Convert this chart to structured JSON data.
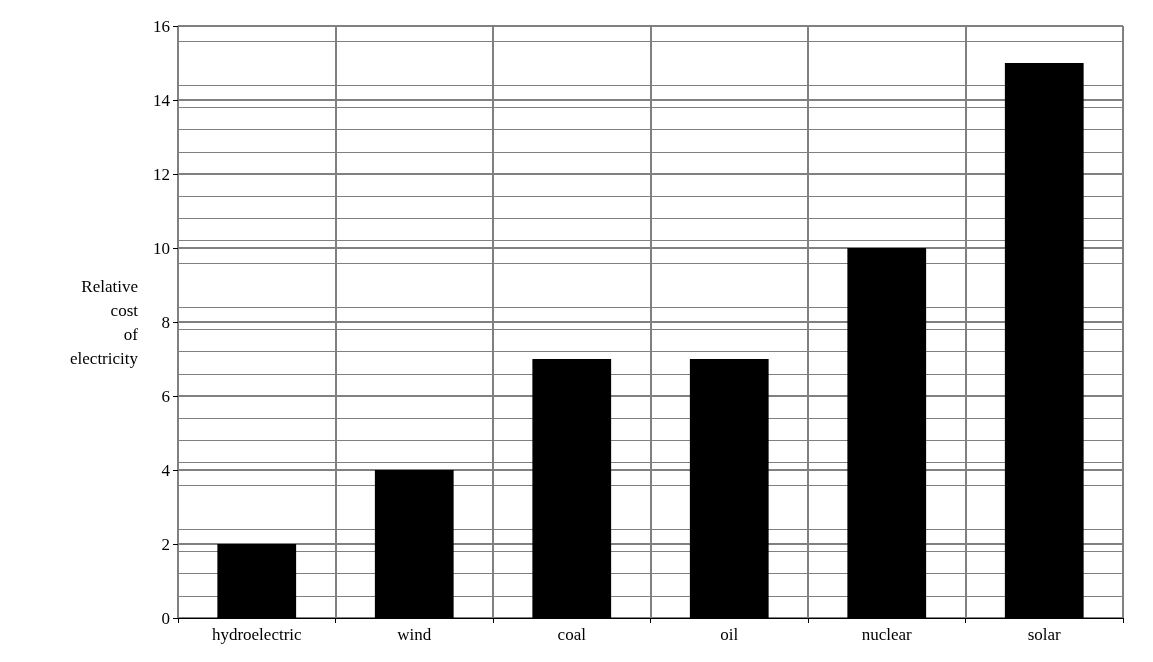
{
  "chart_data": {
    "type": "bar",
    "ylabel": "Relative cost of electricity",
    "categories": [
      "hydroelectric",
      "wind",
      "coal",
      "oil",
      "nuclear",
      "solar"
    ],
    "values": [
      2,
      4,
      7,
      7,
      10,
      15
    ],
    "color": "#000000",
    "ylim": [
      0,
      16
    ],
    "yticks": [
      0,
      2,
      4,
      6,
      8,
      10,
      12,
      14,
      16
    ],
    "grid": true
  }
}
